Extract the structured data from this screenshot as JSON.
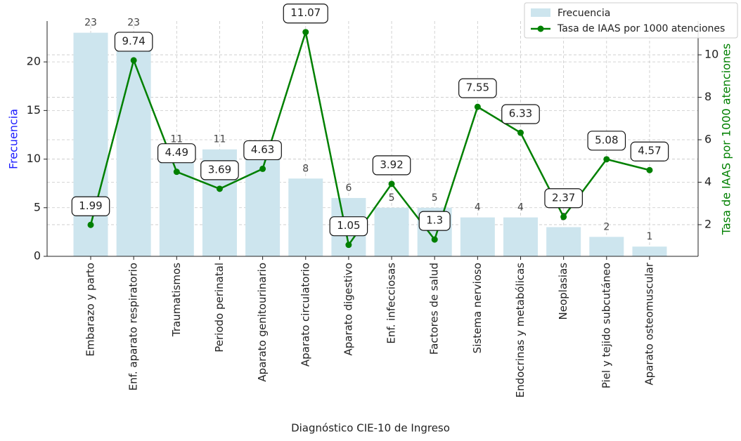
{
  "chart_data": {
    "type": "bar",
    "xlabel": "Diagnóstico CIE-10 de Ingreso",
    "ylabel": "Frecuencia",
    "y2label": "Tasa de IAAS por 1000 atenciones",
    "categories": [
      "Embarazo y parto",
      "Enf. aparato respiratorio",
      "Traumatismos",
      "Periodo perinatal",
      "Aparato genitourinario",
      "Aparato circulatorio",
      "Aparato digestivo",
      "Enf. infecciosas",
      "Factores de salud",
      "Sistema nervioso",
      "Endocrinas y metabólicas",
      "Neoplasias",
      "Piel y tejido subcutáneo",
      "Aparato osteomuscular"
    ],
    "series": [
      {
        "name": "Frecuencia",
        "type": "bar",
        "color": "#cde5ee",
        "values": [
          23,
          23,
          11,
          11,
          10,
          8,
          6,
          5,
          5,
          4,
          4,
          3,
          2,
          1
        ]
      },
      {
        "name": "Tasa de IAAS por 1000 atenciones",
        "type": "line",
        "axis": "y2",
        "color": "#008000",
        "values": [
          1.99,
          9.74,
          4.49,
          3.69,
          4.63,
          11.07,
          1.05,
          3.92,
          1.3,
          7.55,
          6.33,
          2.37,
          5.08,
          4.57
        ]
      }
    ],
    "ylim": [
      0,
      24.2
    ],
    "yticks": [
      0,
      5,
      10,
      15,
      20
    ],
    "y2lim": [
      0.51,
      11.59
    ],
    "y2ticks": [
      2,
      4,
      6,
      8,
      10
    ],
    "grid": true,
    "legend": "upper right"
  }
}
